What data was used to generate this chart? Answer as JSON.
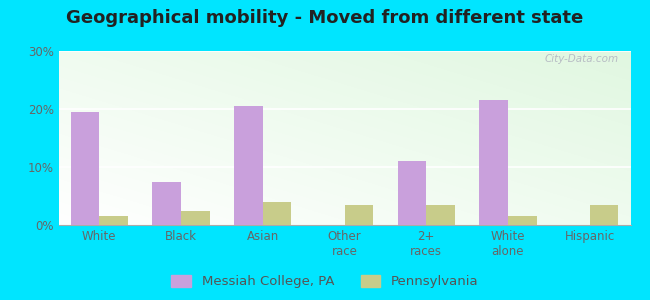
{
  "title": "Geographical mobility - Moved from different state",
  "categories": [
    "White",
    "Black",
    "Asian",
    "Other\nrace",
    "2+\nraces",
    "White\nalone",
    "Hispanic"
  ],
  "messiah_values": [
    19.5,
    7.5,
    20.5,
    0,
    11.0,
    21.5,
    0
  ],
  "pennsylvania_values": [
    1.5,
    2.5,
    4.0,
    3.5,
    3.5,
    1.5,
    3.5
  ],
  "messiah_color": "#c9a0dc",
  "pennsylvania_color": "#c8cc8a",
  "ylim": [
    0,
    30
  ],
  "yticks": [
    0,
    10,
    20,
    30
  ],
  "yticklabels": [
    "0%",
    "10%",
    "20%",
    "30%"
  ],
  "bar_width": 0.35,
  "outer_background": "#00e5ff",
  "legend_label_messiah": "Messiah College, PA",
  "legend_label_pennsylvania": "Pennsylvania",
  "title_fontsize": 13,
  "tick_fontsize": 8.5,
  "legend_fontsize": 9.5
}
